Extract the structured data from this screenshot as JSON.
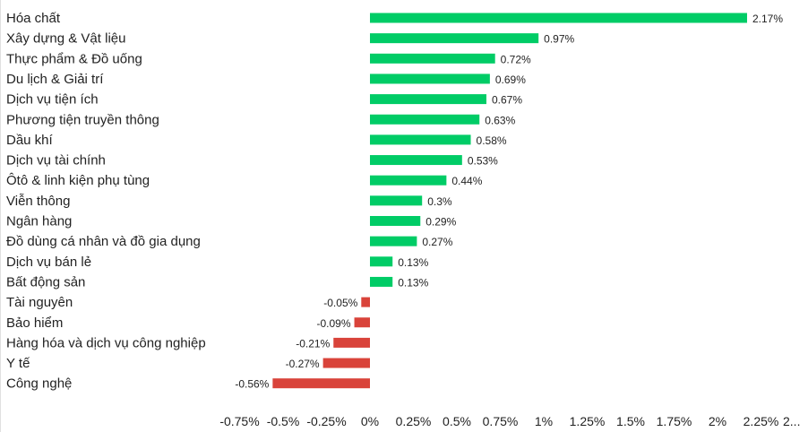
{
  "chart_data": {
    "type": "bar",
    "orientation": "horizontal",
    "categories": [
      "Hóa chất",
      "Xây dựng & Vật liệu",
      "Thực phẩm & Đồ uống",
      "Du lịch & Giải trí",
      "Dịch vụ tiện ích",
      "Phương tiện truyền thông",
      "Dầu khí",
      "Dịch vụ tài chính",
      "Ôtô & linh kiện phụ tùng",
      "Viễn thông",
      "Ngân hàng",
      "Đồ dùng cá nhân và đồ gia dụng",
      "Dịch vụ bán lẻ",
      "Bất động sản",
      "Tài nguyên",
      "Bảo hiểm",
      "Hàng hóa và dịch vụ công nghiệp",
      "Y tế",
      "Công nghệ"
    ],
    "values": [
      2.17,
      0.97,
      0.72,
      0.69,
      0.67,
      0.63,
      0.58,
      0.53,
      0.44,
      0.3,
      0.29,
      0.27,
      0.13,
      0.13,
      -0.05,
      -0.09,
      -0.21,
      -0.27,
      -0.56
    ],
    "value_labels": [
      "2.17%",
      "0.97%",
      "0.72%",
      "0.69%",
      "0.67%",
      "0.63%",
      "0.58%",
      "0.53%",
      "0.44%",
      "0.3%",
      "0.29%",
      "0.27%",
      "0.13%",
      "0.13%",
      "-0.05%",
      "-0.09%",
      "-0.21%",
      "-0.27%",
      "-0.56%"
    ],
    "x_ticks": [
      -0.75,
      -0.5,
      -0.25,
      0,
      0.25,
      0.5,
      0.75,
      1,
      1.25,
      1.5,
      1.75,
      2,
      2.25,
      2.5
    ],
    "x_tick_labels": [
      "-0.75%",
      "-0.5%",
      "-0.25%",
      "0%",
      "0.25%",
      "0.5%",
      "0.75%",
      "1%",
      "1.25%",
      "1.5%",
      "1.75%",
      "2%",
      "2.25%",
      "2..."
    ],
    "xlim": [
      -0.75,
      2.5
    ],
    "title": "",
    "xlabel": "",
    "ylabel": "",
    "grid": false,
    "legend": "none",
    "colors": {
      "positive": "#00cc66",
      "negative": "#d9433a"
    }
  }
}
